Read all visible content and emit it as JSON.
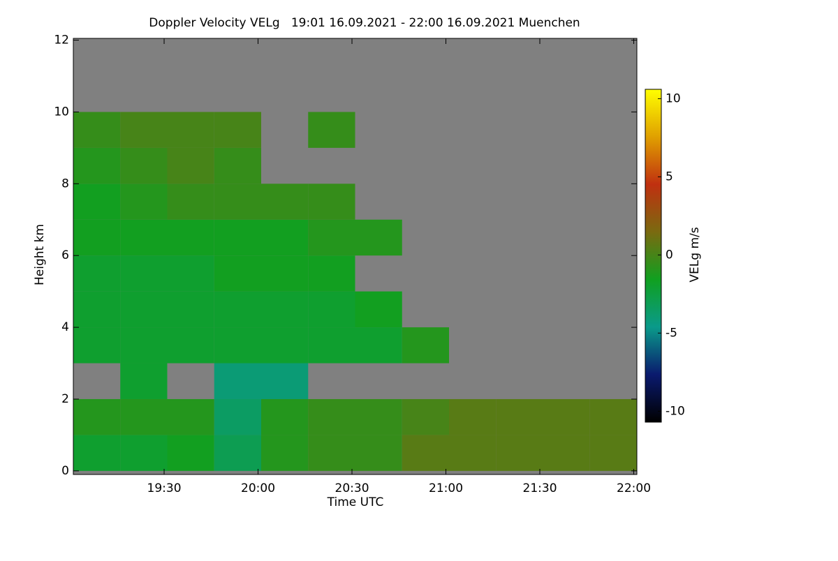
{
  "chart_data": {
    "type": "heatmap",
    "title": "Doppler Velocity VELg   19:01 16.09.2021 - 22:00 16.09.2021 Muenchen",
    "xlabel": "Time UTC",
    "ylabel": "Height km",
    "colorbar_label": "VELg m/s",
    "background": "#808080",
    "x_edges": [
      1141,
      1156,
      1171,
      1186,
      1201,
      1216,
      1231,
      1246,
      1261,
      1276,
      1291,
      1306,
      1321
    ],
    "y_edges": [
      0,
      1,
      2,
      3,
      4,
      5,
      6,
      7,
      8,
      9,
      10,
      11,
      12
    ],
    "z": [
      [
        -2,
        -2,
        -1.5,
        -3,
        -1,
        -0.5,
        -0.5,
        0.5,
        0.5,
        0.5,
        0.5,
        0.5
      ],
      [
        -1,
        -1,
        -1,
        -3.5,
        -1,
        -0.5,
        -0.5,
        0,
        0.5,
        0.5,
        0.5,
        0.5
      ],
      [
        null,
        -2,
        null,
        -4,
        -4,
        null,
        null,
        null,
        null,
        null,
        null,
        null
      ],
      [
        -2,
        -2,
        -2,
        -2,
        -2,
        -2,
        -2,
        -1,
        null,
        null,
        null,
        null
      ],
      [
        -2,
        -2,
        -2,
        -2,
        -2,
        -2,
        -1.5,
        null,
        null,
        null,
        null,
        null
      ],
      [
        -2,
        -2,
        -2,
        -1.5,
        -1.5,
        -1.5,
        null,
        null,
        null,
        null,
        null,
        null
      ],
      [
        -1.5,
        -1.5,
        -1.5,
        -1.5,
        -1.5,
        -1,
        -1,
        null,
        null,
        null,
        null,
        null
      ],
      [
        -1.5,
        -1,
        -0.5,
        -0.5,
        -0.5,
        -0.5,
        null,
        null,
        null,
        null,
        null,
        null
      ],
      [
        -1,
        -0.5,
        0,
        -0.5,
        null,
        null,
        null,
        null,
        null,
        null,
        null,
        null
      ],
      [
        -0.5,
        0,
        0,
        0,
        null,
        -0.5,
        null,
        null,
        null,
        null,
        null,
        null
      ],
      [
        null,
        null,
        null,
        null,
        null,
        null,
        null,
        null,
        null,
        null,
        null,
        null
      ],
      [
        null,
        null,
        null,
        null,
        null,
        null,
        null,
        null,
        null,
        null,
        null,
        null
      ]
    ],
    "xlim": [
      1141,
      1321
    ],
    "xticks": [
      {
        "value": 1170,
        "label": "19:30"
      },
      {
        "value": 1200,
        "label": "20:00"
      },
      {
        "value": 1230,
        "label": "20:30"
      },
      {
        "value": 1260,
        "label": "21:00"
      },
      {
        "value": 1290,
        "label": "21:30"
      },
      {
        "value": 1320,
        "label": "22:00"
      }
    ],
    "ylim": [
      -0.1,
      12.05
    ],
    "yticks": [
      0,
      2,
      4,
      6,
      8,
      10,
      12
    ],
    "clim": [
      -10.7,
      10.6
    ],
    "cticks": [
      -10,
      -5,
      0,
      5,
      10
    ],
    "colormap": [
      "#000000",
      "#0a1a6e",
      "#0a9a8a",
      "#10a020",
      "#7a6a10",
      "#c03010",
      "#e0a000",
      "#ffff00"
    ]
  }
}
